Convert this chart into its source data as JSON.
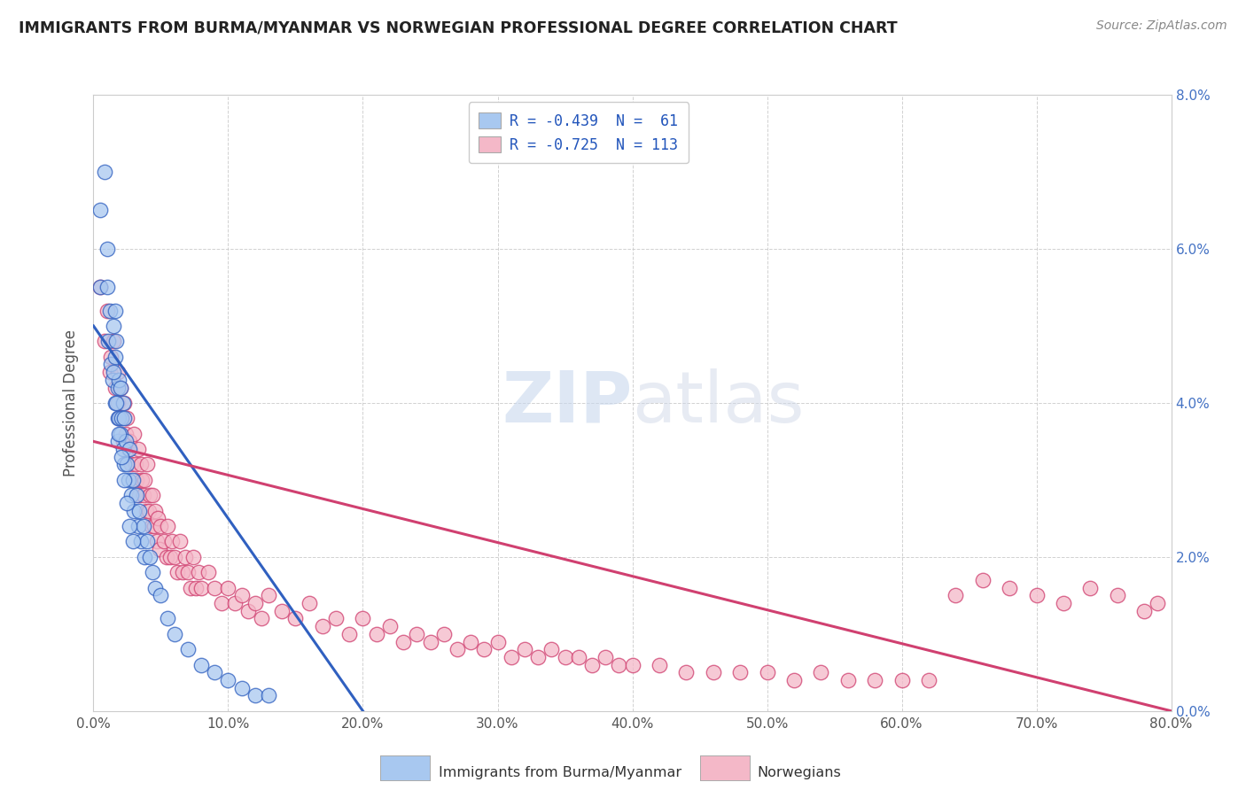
{
  "title": "IMMIGRANTS FROM BURMA/MYANMAR VS NORWEGIAN PROFESSIONAL DEGREE CORRELATION CHART",
  "source": "Source: ZipAtlas.com",
  "ylabel": "Professional Degree",
  "legend_label1": "Immigrants from Burma/Myanmar",
  "legend_label2": "Norwegians",
  "R1": -0.439,
  "N1": 61,
  "R2": -0.725,
  "N2": 113,
  "color1": "#a8c8f0",
  "color2": "#f4b8c8",
  "line_color1": "#3060c0",
  "line_color2": "#d04070",
  "xlim": [
    0.0,
    0.8
  ],
  "ylim": [
    0.0,
    0.08
  ],
  "x_ticks": [
    0.0,
    0.1,
    0.2,
    0.3,
    0.4,
    0.5,
    0.6,
    0.7,
    0.8
  ],
  "y_ticks": [
    0.0,
    0.02,
    0.04,
    0.06,
    0.08
  ],
  "x_tick_labels": [
    "0.0%",
    "10.0%",
    "20.0%",
    "30.0%",
    "40.0%",
    "50.0%",
    "60.0%",
    "70.0%",
    "80.0%"
  ],
  "y_tick_labels_right": [
    "0.0%",
    "2.0%",
    "4.0%",
    "6.0%",
    "8.0%"
  ],
  "background_color": "#ffffff",
  "grid_color": "#cccccc",
  "blue_line_x": [
    0.0,
    0.2
  ],
  "blue_line_y": [
    0.05,
    0.0
  ],
  "pink_line_x": [
    0.0,
    0.8
  ],
  "pink_line_y": [
    0.035,
    0.0
  ],
  "blue_scatter_x": [
    0.005,
    0.005,
    0.008,
    0.01,
    0.01,
    0.011,
    0.012,
    0.013,
    0.014,
    0.015,
    0.016,
    0.016,
    0.016,
    0.017,
    0.018,
    0.018,
    0.018,
    0.019,
    0.019,
    0.02,
    0.02,
    0.021,
    0.022,
    0.022,
    0.023,
    0.023,
    0.024,
    0.025,
    0.026,
    0.027,
    0.028,
    0.029,
    0.03,
    0.032,
    0.033,
    0.034,
    0.035,
    0.037,
    0.038,
    0.04,
    0.042,
    0.044,
    0.046,
    0.05,
    0.055,
    0.06,
    0.07,
    0.08,
    0.09,
    0.1,
    0.11,
    0.12,
    0.13,
    0.015,
    0.017,
    0.019,
    0.021,
    0.023,
    0.025,
    0.027,
    0.029
  ],
  "blue_scatter_y": [
    0.065,
    0.055,
    0.07,
    0.06,
    0.055,
    0.048,
    0.052,
    0.045,
    0.043,
    0.05,
    0.052,
    0.046,
    0.04,
    0.048,
    0.042,
    0.038,
    0.035,
    0.043,
    0.038,
    0.042,
    0.036,
    0.038,
    0.04,
    0.034,
    0.038,
    0.032,
    0.035,
    0.032,
    0.03,
    0.034,
    0.028,
    0.03,
    0.026,
    0.028,
    0.024,
    0.026,
    0.022,
    0.024,
    0.02,
    0.022,
    0.02,
    0.018,
    0.016,
    0.015,
    0.012,
    0.01,
    0.008,
    0.006,
    0.005,
    0.004,
    0.003,
    0.002,
    0.002,
    0.044,
    0.04,
    0.036,
    0.033,
    0.03,
    0.027,
    0.024,
    0.022
  ],
  "pink_scatter_x": [
    0.005,
    0.008,
    0.01,
    0.012,
    0.013,
    0.015,
    0.016,
    0.018,
    0.018,
    0.019,
    0.02,
    0.021,
    0.022,
    0.023,
    0.024,
    0.025,
    0.026,
    0.027,
    0.028,
    0.03,
    0.031,
    0.032,
    0.033,
    0.034,
    0.035,
    0.036,
    0.037,
    0.038,
    0.039,
    0.04,
    0.041,
    0.042,
    0.043,
    0.044,
    0.045,
    0.046,
    0.047,
    0.048,
    0.049,
    0.05,
    0.052,
    0.054,
    0.055,
    0.057,
    0.058,
    0.06,
    0.062,
    0.064,
    0.066,
    0.068,
    0.07,
    0.072,
    0.074,
    0.076,
    0.078,
    0.08,
    0.085,
    0.09,
    0.095,
    0.1,
    0.105,
    0.11,
    0.115,
    0.12,
    0.125,
    0.13,
    0.14,
    0.15,
    0.16,
    0.17,
    0.18,
    0.19,
    0.2,
    0.21,
    0.22,
    0.23,
    0.24,
    0.25,
    0.26,
    0.27,
    0.28,
    0.29,
    0.3,
    0.31,
    0.32,
    0.33,
    0.34,
    0.35,
    0.36,
    0.37,
    0.38,
    0.39,
    0.4,
    0.42,
    0.44,
    0.46,
    0.48,
    0.5,
    0.52,
    0.54,
    0.56,
    0.58,
    0.6,
    0.62,
    0.64,
    0.66,
    0.68,
    0.7,
    0.72,
    0.74,
    0.76,
    0.78,
    0.79
  ],
  "pink_scatter_y": [
    0.055,
    0.048,
    0.052,
    0.044,
    0.046,
    0.048,
    0.042,
    0.04,
    0.044,
    0.038,
    0.042,
    0.038,
    0.035,
    0.04,
    0.036,
    0.038,
    0.034,
    0.035,
    0.032,
    0.036,
    0.032,
    0.03,
    0.034,
    0.028,
    0.032,
    0.03,
    0.028,
    0.03,
    0.026,
    0.032,
    0.026,
    0.028,
    0.024,
    0.028,
    0.024,
    0.026,
    0.022,
    0.025,
    0.021,
    0.024,
    0.022,
    0.02,
    0.024,
    0.02,
    0.022,
    0.02,
    0.018,
    0.022,
    0.018,
    0.02,
    0.018,
    0.016,
    0.02,
    0.016,
    0.018,
    0.016,
    0.018,
    0.016,
    0.014,
    0.016,
    0.014,
    0.015,
    0.013,
    0.014,
    0.012,
    0.015,
    0.013,
    0.012,
    0.014,
    0.011,
    0.012,
    0.01,
    0.012,
    0.01,
    0.011,
    0.009,
    0.01,
    0.009,
    0.01,
    0.008,
    0.009,
    0.008,
    0.009,
    0.007,
    0.008,
    0.007,
    0.008,
    0.007,
    0.007,
    0.006,
    0.007,
    0.006,
    0.006,
    0.006,
    0.005,
    0.005,
    0.005,
    0.005,
    0.004,
    0.005,
    0.004,
    0.004,
    0.004,
    0.004,
    0.015,
    0.017,
    0.016,
    0.015,
    0.014,
    0.016,
    0.015,
    0.013,
    0.014
  ]
}
